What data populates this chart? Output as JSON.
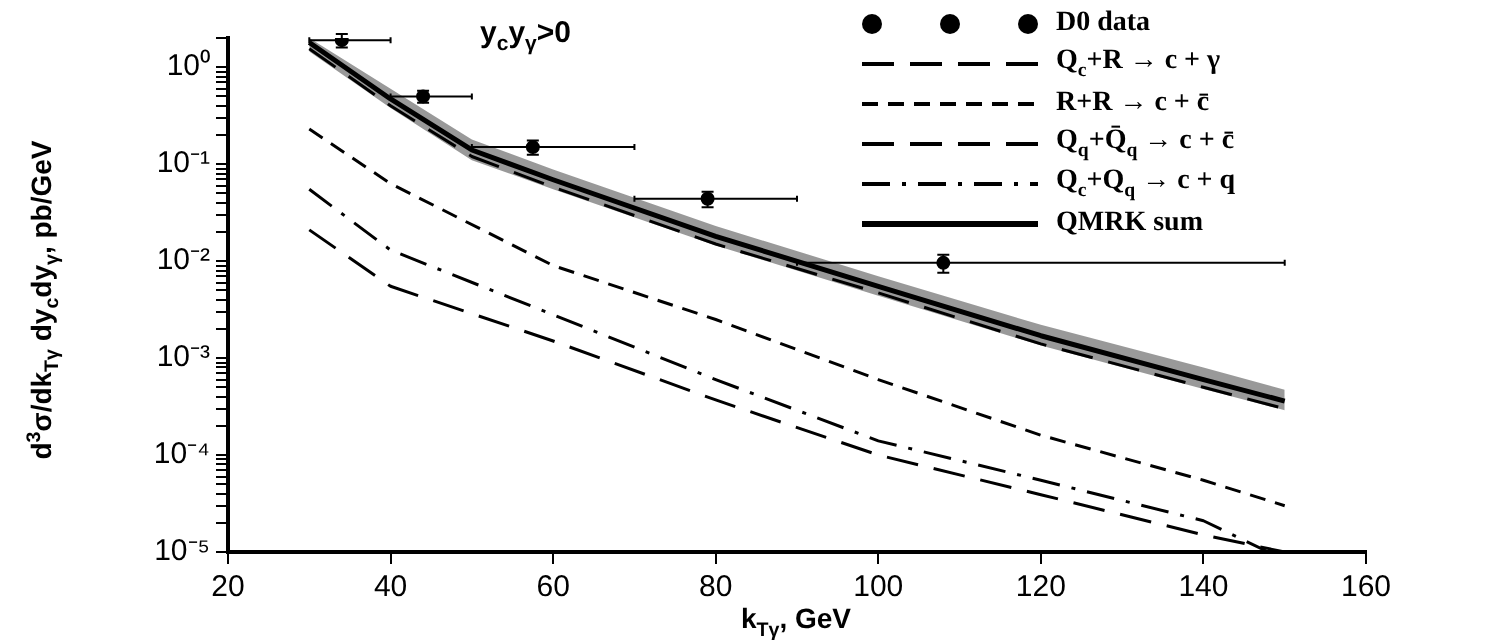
{
  "chart_data": {
    "type": "line",
    "xlabel": "k$_{Tγ}$, GeV",
    "ylabel": "d$^{3}$σ/dk$_{Tγ}$ dy$_{c}$dy$_{γ}$, pb/GeV",
    "annotations": [
      "y$_{c}$y$_{γ}$>0"
    ],
    "log": "y",
    "grid": false,
    "legend": "top right",
    "xlim": [
      20,
      160
    ],
    "xticks": [
      20,
      40,
      60,
      80,
      100,
      120,
      140,
      160
    ],
    "ylim": [
      1e-05,
      2
    ],
    "yticks": [
      {
        "value": 1e-05,
        "label": "10⁻⁵"
      },
      {
        "value": 2e-05,
        "label": null
      },
      {
        "value": 3e-05,
        "label": null
      },
      {
        "value": 4e-05,
        "label": null
      },
      {
        "value": 5e-05,
        "label": null
      },
      {
        "value": 6e-05,
        "label": null
      },
      {
        "value": 7e-05,
        "label": null
      },
      {
        "value": 8e-05,
        "label": null
      },
      {
        "value": 9e-05,
        "label": null
      },
      {
        "value": 0.0001,
        "label": "10⁻⁴"
      },
      {
        "value": 0.0002,
        "label": null
      },
      {
        "value": 0.0003,
        "label": null
      },
      {
        "value": 0.0004,
        "label": null
      },
      {
        "value": 0.0005,
        "label": null
      },
      {
        "value": 0.0006,
        "label": null
      },
      {
        "value": 0.0007,
        "label": null
      },
      {
        "value": 0.0008,
        "label": null
      },
      {
        "value": 0.0009,
        "label": null
      },
      {
        "value": 0.001,
        "label": "10⁻³"
      },
      {
        "value": 0.002,
        "label": null
      },
      {
        "value": 0.003,
        "label": null
      },
      {
        "value": 0.004,
        "label": null
      },
      {
        "value": 0.005,
        "label": null
      },
      {
        "value": 0.006,
        "label": null
      },
      {
        "value": 0.007,
        "label": null
      },
      {
        "value": 0.008,
        "label": null
      },
      {
        "value": 0.009,
        "label": null
      },
      {
        "value": 0.01,
        "label": "10⁻²"
      },
      {
        "value": 0.02,
        "label": null
      },
      {
        "value": 0.03,
        "label": null
      },
      {
        "value": 0.04,
        "label": null
      },
      {
        "value": 0.05,
        "label": null
      },
      {
        "value": 0.06,
        "label": null
      },
      {
        "value": 0.07,
        "label": null
      },
      {
        "value": 0.08,
        "label": null
      },
      {
        "value": 0.09,
        "label": null
      },
      {
        "value": 0.1,
        "label": "10⁻¹"
      },
      {
        "value": 0.2,
        "label": null
      },
      {
        "value": 0.3,
        "label": null
      },
      {
        "value": 0.4,
        "label": null
      },
      {
        "value": 0.5,
        "label": null
      },
      {
        "value": 0.6,
        "label": null
      },
      {
        "value": 0.7,
        "label": null
      },
      {
        "value": 0.8,
        "label": null
      },
      {
        "value": 0.9,
        "label": null
      },
      {
        "value": 1,
        "label": "10⁰"
      },
      {
        "value": 2,
        "label": null
      }
    ],
    "series": [
      {
        "name": "D0 data",
        "type": "scatter",
        "marker": "circle",
        "color": "#000000",
        "x": [
          34,
          44,
          57.5,
          79,
          108
        ],
        "values": [
          1.9,
          0.5,
          0.15,
          0.044,
          0.0096
        ],
        "errors": [
          0.3,
          0.07,
          0.025,
          0.008,
          0.002
        ],
        "xerrors": [
          [
            30,
            40
          ],
          [
            40,
            50
          ],
          [
            50,
            70
          ],
          [
            70,
            90
          ],
          [
            90,
            150
          ]
        ]
      },
      {
        "name": "Q$_{c}$+R → c + γ",
        "type": "line",
        "line_style": "longdash",
        "marker": "none",
        "color": "#000000",
        "x": [
          30,
          40,
          50,
          60,
          80,
          100,
          120,
          140,
          150
        ],
        "values": [
          1.55,
          0.4,
          0.12,
          0.058,
          0.015,
          0.0047,
          0.0014,
          0.0005,
          0.0003
        ]
      },
      {
        "name": "R+R → c + c̄",
        "line_style": "dashed",
        "marker": "none",
        "color": "#000000",
        "x": [
          30,
          40,
          60,
          80,
          100,
          120,
          140,
          150
        ],
        "values": [
          0.23,
          0.063,
          0.009,
          0.0025,
          0.0006,
          0.00016,
          5.5e-05,
          3e-05
        ]
      },
      {
        "name": "Q$_{q}$+Q̄$_{q}$ → c + c̄",
        "type": "line",
        "line_style": "longdash",
        "marker": "none",
        "color": "#000000",
        "x": [
          30,
          40,
          60,
          80,
          100,
          120,
          140,
          150
        ],
        "values": [
          0.021,
          0.0055,
          0.0015,
          0.00037,
          0.0001,
          3.9e-05,
          1.5e-05,
          1e-05
        ]
      },
      {
        "name": "Q$_{c}$+Q$_{q}$ → c + q",
        "type": "line",
        "line_style": "dashdot",
        "marker": "none",
        "color": "#000000",
        "x": [
          30,
          40,
          60,
          80,
          100,
          120,
          140,
          148
        ],
        "values": [
          0.055,
          0.013,
          0.0028,
          0.0006,
          0.00014,
          5.5e-05,
          2.1e-05,
          1e-05
        ]
      },
      {
        "name": "QMRK sum",
        "line_style": "solid",
        "marker": "none",
        "color": "#000000",
        "x": [
          30,
          40,
          50,
          60,
          80,
          100,
          120,
          140,
          150
        ],
        "values": [
          1.8,
          0.47,
          0.14,
          0.069,
          0.018,
          0.0055,
          0.0017,
          0.0006,
          0.00036
        ],
        "lower": [
          1.45,
          0.38,
          0.11,
          0.055,
          0.0145,
          0.0044,
          0.00135,
          0.00048,
          0.00029
        ],
        "upper": [
          2,
          0.6,
          0.18,
          0.088,
          0.023,
          0.007,
          0.0022,
          0.0008,
          0.00047
        ]
      }
    ]
  }
}
